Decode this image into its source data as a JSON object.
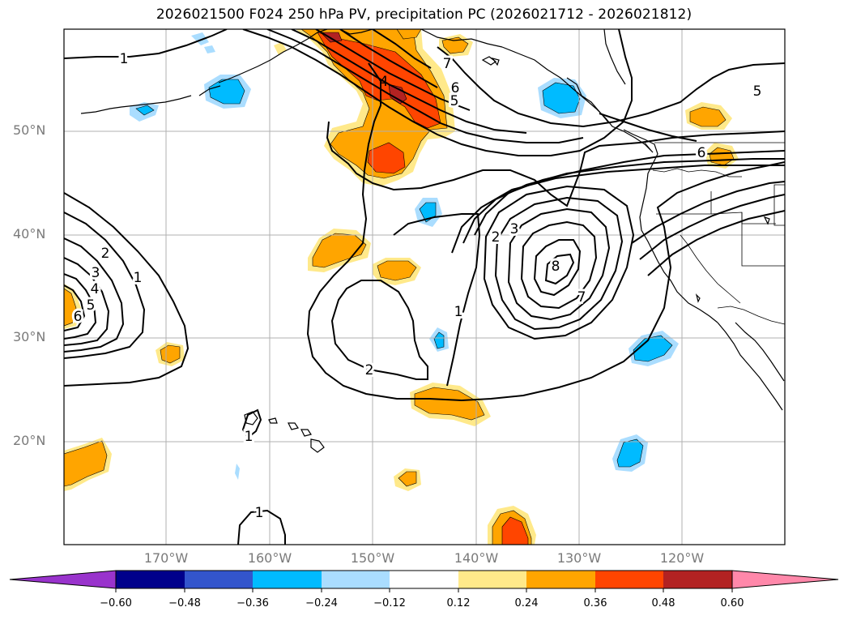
{
  "title": "2026021500 F024 250 hPa PV, precipitation PC (2026021712 - 2026021812)",
  "lat_labels": [
    "50°N",
    "40°N",
    "30°N",
    "20°N"
  ],
  "lon_labels": [
    "170°W",
    "160°W",
    "150°W",
    "140°W",
    "130°W",
    "120°W"
  ],
  "contour_labels": [
    "1",
    "4",
    "7",
    "6",
    "5",
    "5",
    "6",
    "2",
    "3",
    "8",
    "7",
    "1",
    "2",
    "2",
    "3",
    "4",
    "5",
    "6",
    "1",
    "1",
    "1"
  ],
  "colorbar": {
    "labels": [
      "−0.60",
      "−0.48",
      "−0.36",
      "−0.24",
      "−0.12",
      "0.12",
      "0.24",
      "0.36",
      "0.48",
      "0.60"
    ],
    "colors": [
      "#9933cc",
      "#00008b",
      "#3355cc",
      "#00bbff",
      "#aaddff",
      "#ffffff",
      "#ffe98a",
      "#ffa500",
      "#ff4500",
      "#b22222",
      "#ff88aa"
    ]
  },
  "fill_colors": {
    "light_orange": "#ffe98a",
    "orange": "#ffa500",
    "red_orange": "#ff4500",
    "dark_red": "#b22222",
    "cyan": "#00bbff",
    "light_blue": "#aaddff"
  }
}
